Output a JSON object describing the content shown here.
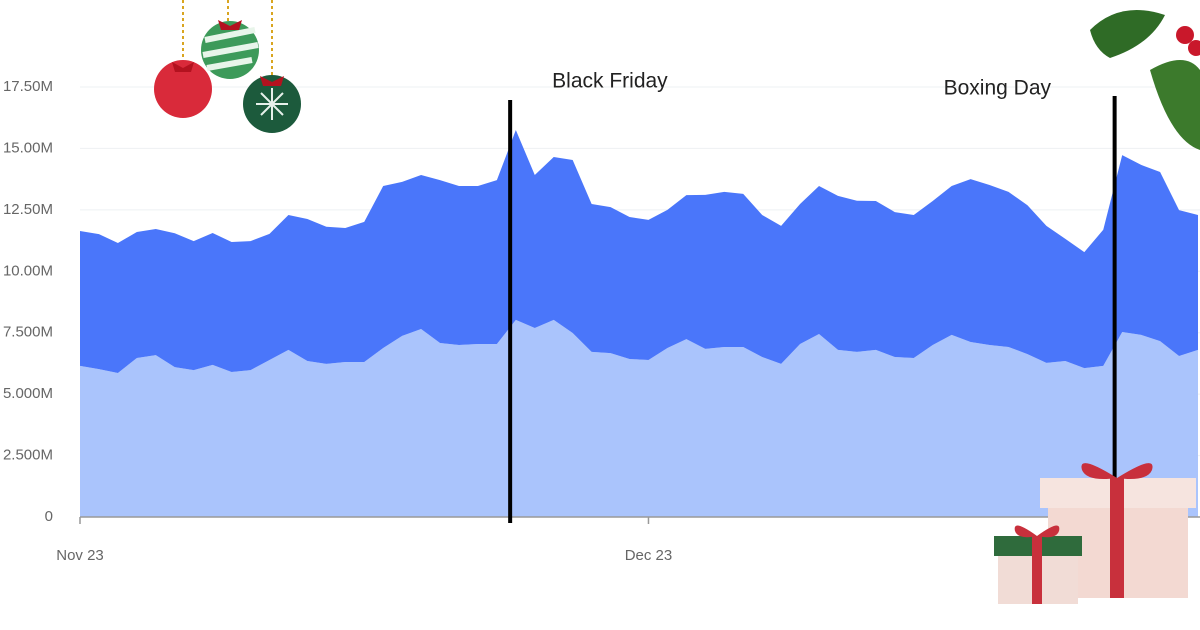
{
  "chart_data": {
    "type": "stacked_area",
    "x": [
      0,
      1,
      2,
      3,
      4,
      5,
      6,
      7,
      8,
      9,
      10,
      11,
      12,
      13,
      14,
      15,
      16,
      17,
      18,
      19,
      20,
      21,
      22,
      23,
      24,
      25,
      26,
      27,
      28,
      29,
      30,
      31,
      32,
      33,
      34,
      35,
      36,
      37,
      38,
      39,
      40,
      41,
      42,
      43,
      44,
      45,
      46,
      47,
      48,
      49,
      50,
      51,
      52,
      53,
      54,
      55,
      56,
      57,
      58,
      59
    ],
    "series": [
      {
        "color": "#aac4fc",
        "values": [
          6.15,
          6.02,
          5.86,
          6.47,
          6.59,
          6.1,
          5.98,
          6.19,
          5.9,
          5.98,
          6.39,
          6.8,
          6.35,
          6.23,
          6.31,
          6.31,
          6.88,
          7.37,
          7.65,
          7.08,
          7.0,
          7.04,
          7.04,
          8.02,
          7.69,
          8.02,
          7.49,
          6.72,
          6.67,
          6.43,
          6.39,
          6.88,
          7.24,
          6.84,
          6.92,
          6.92,
          6.51,
          6.23,
          7.04,
          7.45,
          6.8,
          6.72,
          6.8,
          6.51,
          6.47,
          7.0,
          7.41,
          7.12,
          7.0,
          6.92,
          6.63,
          6.27,
          6.35,
          6.06,
          6.15,
          7.53,
          7.41,
          7.16,
          6.55,
          6.8
        ]
      },
      {
        "color": "#4a76fa",
        "values": [
          5.49,
          5.49,
          5.29,
          5.13,
          5.13,
          5.45,
          5.25,
          5.37,
          5.29,
          5.25,
          5.13,
          5.49,
          5.78,
          5.58,
          5.45,
          5.7,
          6.59,
          6.27,
          6.27,
          6.63,
          6.47,
          6.43,
          6.67,
          7.73,
          6.23,
          6.63,
          7.04,
          6.02,
          5.94,
          5.78,
          5.7,
          5.62,
          5.86,
          6.27,
          6.31,
          6.23,
          5.78,
          5.62,
          5.7,
          6.02,
          6.27,
          6.15,
          6.06,
          5.9,
          5.82,
          5.86,
          6.06,
          6.63,
          6.51,
          6.31,
          6.06,
          5.58,
          4.97,
          4.72,
          5.54,
          7.2,
          6.92,
          6.88,
          5.94,
          5.49
        ]
      }
    ],
    "xlim": [
      0,
      59
    ],
    "xticks": [
      {
        "value": 0,
        "label": "Nov 23"
      },
      {
        "value": 30,
        "label": "Dec 23"
      }
    ],
    "ylim": [
      0,
      17.5
    ],
    "yticks": [
      {
        "value": 0,
        "label": "0"
      },
      {
        "value": 2.5,
        "label": "2.500M"
      },
      {
        "value": 5,
        "label": "5.000M"
      },
      {
        "value": 7.5,
        "label": "7.500M"
      },
      {
        "value": 10,
        "label": "10.00M"
      },
      {
        "value": 12.5,
        "label": "12.50M"
      },
      {
        "value": 15,
        "label": "15.00M"
      },
      {
        "value": 17.5,
        "label": "17.50M"
      }
    ],
    "grid": true,
    "annotations": [
      {
        "text": "Black Friday",
        "x": 22.7
      },
      {
        "text": "Boxing Day",
        "x": 54.6
      }
    ]
  }
}
